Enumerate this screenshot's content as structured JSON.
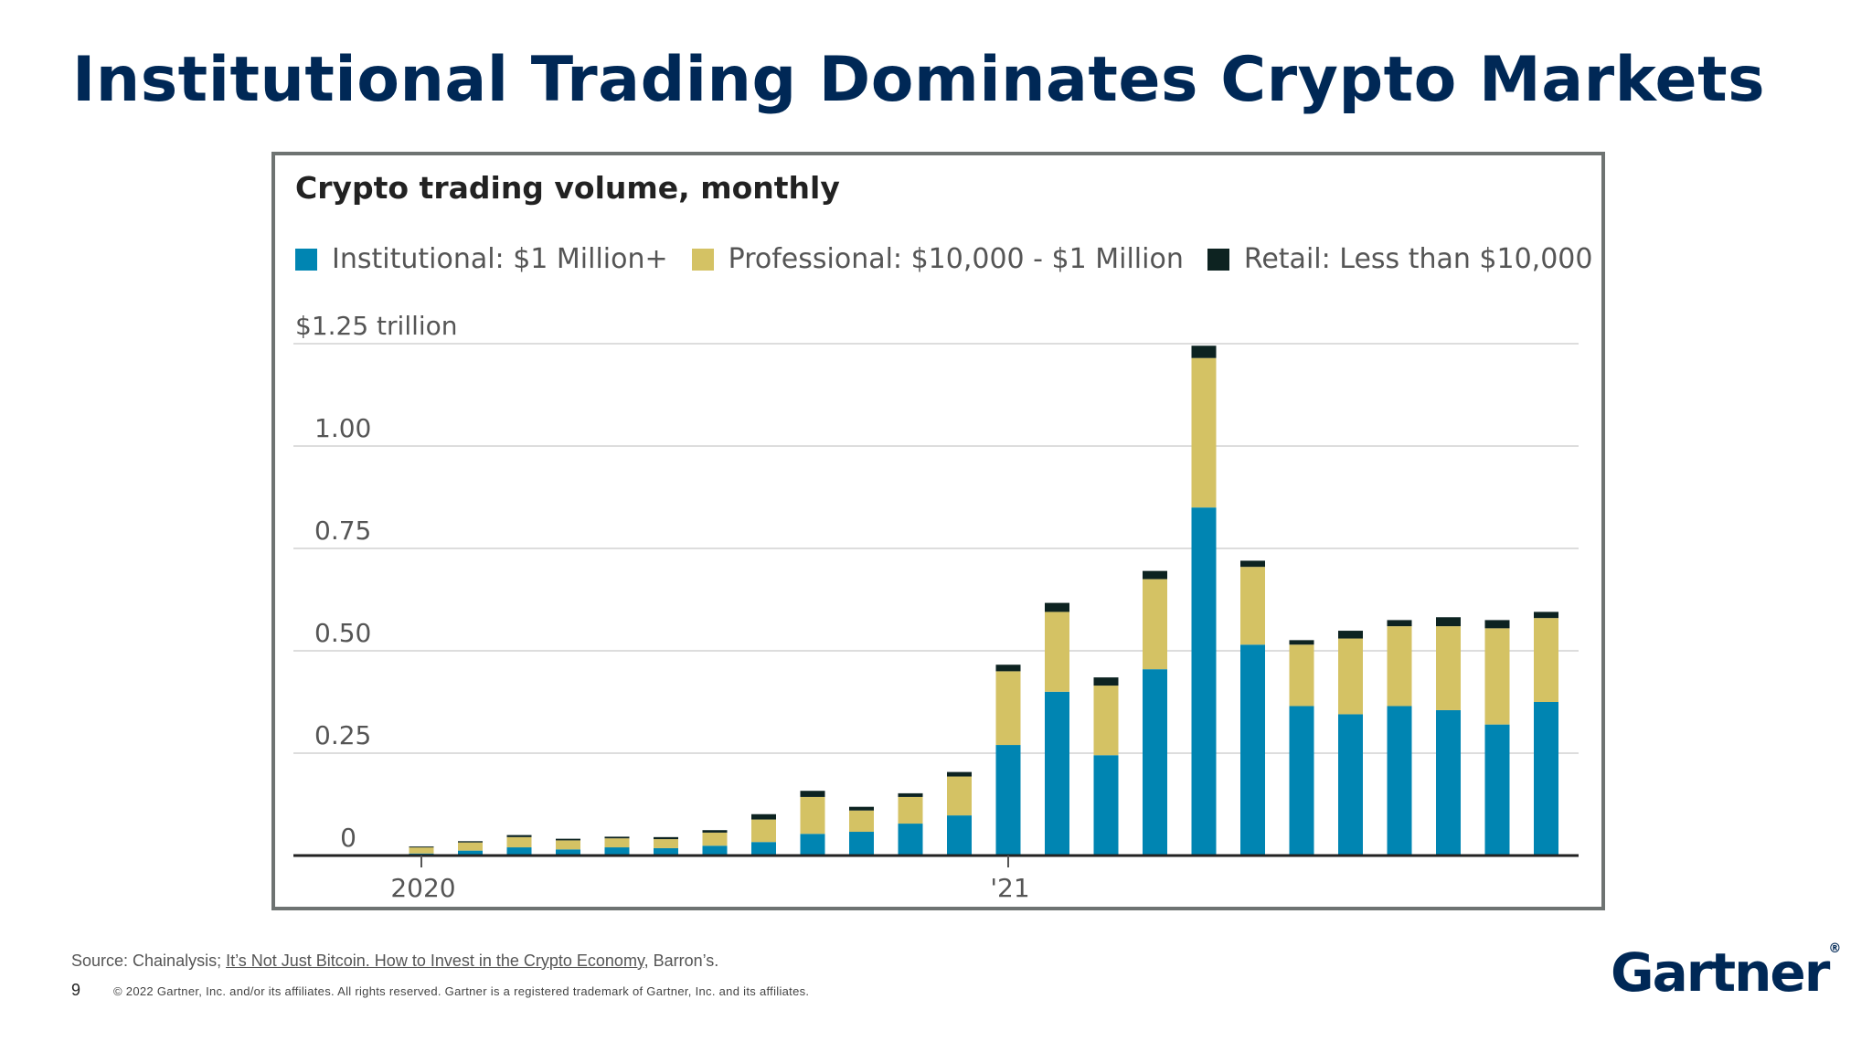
{
  "slide": {
    "title": "Institutional Trading Dominates Crypto Markets",
    "page_number": "9",
    "copyright": "© 2022 Gartner, Inc. and/or its affiliates. All rights reserved. Gartner is a registered trademark of Gartner, Inc. and its affiliates.",
    "logo": "Gartner",
    "logo_mark": "®"
  },
  "source": {
    "prefix": "Source: Chainalysis; ",
    "link_text": "It’s Not Just Bitcoin. How to Invest in the Crypto Economy",
    "suffix": ", Barron’s."
  },
  "colors": {
    "title": "#002856",
    "institutional": "#0085b2",
    "professional": "#d4c264",
    "retail": "#0d2321",
    "gridline": "#dddddd",
    "axis": "#222222"
  },
  "chart_data": {
    "type": "bar",
    "stacked": true,
    "title": "Crypto trading volume, monthly",
    "y_top_label": "$1.25 trillion",
    "ylim": [
      0,
      1.25
    ],
    "yticks": [
      {
        "value": 0,
        "label": "0"
      },
      {
        "value": 0.25,
        "label": "0.25"
      },
      {
        "value": 0.5,
        "label": "0.50"
      },
      {
        "value": 0.75,
        "label": "0.75"
      },
      {
        "value": 1.0,
        "label": "1.00"
      },
      {
        "value": 1.25,
        "label": "$1.25 trillion"
      }
    ],
    "grid": true,
    "legend_position": "top-left",
    "categories": [
      "2020-01",
      "2020-02",
      "2020-03",
      "2020-04",
      "2020-05",
      "2020-06",
      "2020-07",
      "2020-08",
      "2020-09",
      "2020-10",
      "2020-11",
      "2020-12",
      "2021-01",
      "2021-02",
      "2021-03",
      "2021-04",
      "2021-05",
      "2021-06",
      "2021-07",
      "2021-08",
      "2021-09",
      "2021-10",
      "2021-11",
      "2021-12"
    ],
    "xtick_labels": [
      {
        "category": "2020-01",
        "label": "2020"
      },
      {
        "category": "2021-01",
        "label": "'21"
      }
    ],
    "series": [
      {
        "name": "Institutional: $1 Million+",
        "color": "#0085b2",
        "values": [
          0.005,
          0.012,
          0.02,
          0.015,
          0.02,
          0.018,
          0.024,
          0.033,
          0.053,
          0.058,
          0.078,
          0.098,
          0.27,
          0.4,
          0.245,
          0.455,
          0.85,
          0.515,
          0.365,
          0.345,
          0.365,
          0.355,
          0.32,
          0.375
        ]
      },
      {
        "name": "Professional: $10,000 - $1 Million",
        "color": "#d4c264",
        "values": [
          0.015,
          0.02,
          0.025,
          0.022,
          0.022,
          0.022,
          0.032,
          0.055,
          0.09,
          0.052,
          0.065,
          0.095,
          0.18,
          0.195,
          0.17,
          0.22,
          0.365,
          0.19,
          0.15,
          0.185,
          0.195,
          0.205,
          0.235,
          0.205
        ]
      },
      {
        "name": "Retail: Less than $10,000",
        "color": "#0d2321",
        "values": [
          0.002,
          0.003,
          0.005,
          0.004,
          0.004,
          0.005,
          0.006,
          0.013,
          0.015,
          0.009,
          0.009,
          0.011,
          0.016,
          0.022,
          0.02,
          0.02,
          0.03,
          0.015,
          0.011,
          0.019,
          0.015,
          0.022,
          0.02,
          0.015
        ]
      }
    ]
  }
}
